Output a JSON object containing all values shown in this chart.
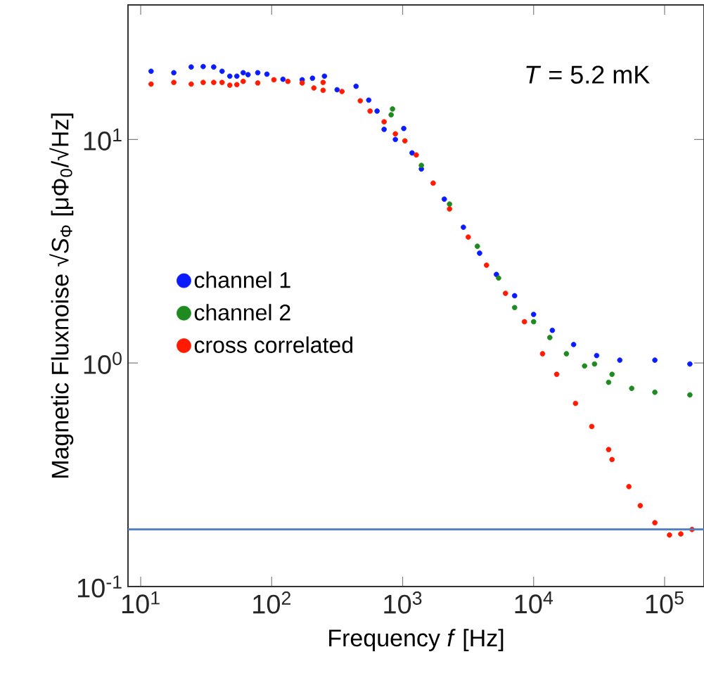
{
  "chart_data": {
    "type": "scatter",
    "xlabel": "Frequency *f* [Hz]",
    "ylabel": "Magnetic Fluxnoise √*S*$_{Φ}$  [μΦ$_{0}$/√Hz]",
    "annotations": [
      "*T* = 5.2 mK"
    ],
    "log": "xy",
    "marker": "circle",
    "legend": "center left",
    "xlim": [
      8,
      200000
    ],
    "ylim": [
      0.1,
      40
    ],
    "xticks": [
      {
        "value": 10,
        "label": "10$^{1}$"
      },
      {
        "value": 100,
        "label": "10$^{2}$"
      },
      {
        "value": 1000,
        "label": "10$^{3}$"
      },
      {
        "value": 10000,
        "label": "10$^{4}$"
      },
      {
        "value": 100000,
        "label": "10$^{5}$"
      }
    ],
    "yticks": [
      {
        "value": 0.1,
        "label": "10$^{-1}$"
      },
      {
        "value": 1,
        "label": "10$^{0}$"
      },
      {
        "value": 10,
        "label": "10$^{1}$"
      }
    ],
    "ref_lines": [
      {
        "axis": "y",
        "value": 0.18,
        "color": "#4f7fc0"
      }
    ],
    "series": [
      {
        "name": "channel 1",
        "color": "#0a1cff",
        "x": [
          12.0,
          17.9,
          24.3,
          30.0,
          36.1,
          41.8,
          47.9,
          54.2,
          60.6,
          66.0,
          78.3,
          92.0,
          122,
          171,
          205,
          253,
          316,
          441,
          551,
          638,
          722,
          880,
          1020,
          1180,
          1390,
          2080,
          2910,
          3870,
          5200,
          7160,
          10000,
          13900,
          20200,
          30300,
          45500,
          84300,
          156000
        ],
        "values": [
          20.2,
          19.9,
          21.1,
          21.2,
          21.1,
          20.2,
          19.2,
          19.2,
          19.9,
          19.5,
          19.9,
          19.6,
          18.6,
          18.5,
          18.8,
          19.2,
          16.7,
          17.3,
          15.0,
          13.4,
          11.1,
          10.0,
          11.2,
          8.71,
          7.38,
          5.41,
          4.05,
          3.1,
          2.49,
          2.0,
          1.65,
          1.4,
          1.21,
          1.08,
          1.03,
          1.03,
          0.99
        ]
      },
      {
        "name": "channel 2",
        "color": "#1f8a1f",
        "x": [
          817,
          837,
          1390,
          2280,
          3720,
          5400,
          7160,
          10000,
          13300,
          17800,
          24500,
          29200,
          37400,
          39700,
          56100,
          84300,
          156000
        ],
        "values": [
          12.9,
          13.7,
          7.66,
          5.14,
          3.33,
          2.4,
          1.77,
          1.53,
          1.3,
          1.1,
          0.97,
          0.99,
          0.82,
          0.89,
          0.77,
          0.74,
          0.72
        ]
      },
      {
        "name": "cross correlated",
        "color": "#ff1a00",
        "x": [
          12.0,
          17.9,
          24.3,
          30.0,
          36.1,
          41.8,
          47.9,
          54.2,
          60.6,
          78.3,
          104,
          133,
          171,
          210,
          247,
          247,
          344,
          475,
          564,
          722,
          880,
          1040,
          1270,
          1710,
          2280,
          3170,
          4370,
          6100,
          8510,
          11700,
          15000,
          20900,
          27800,
          37400,
          39700,
          53400,
          65200,
          84300,
          109000,
          133000,
          162000
        ],
        "values": [
          17.7,
          18.0,
          17.7,
          18.0,
          18.0,
          18.0,
          17.5,
          17.6,
          18.2,
          17.9,
          18.5,
          18.2,
          17.9,
          17.0,
          16.6,
          18.0,
          16.4,
          14.9,
          13.4,
          12.0,
          10.6,
          9.86,
          8.53,
          6.38,
          4.89,
          3.66,
          2.74,
          2.05,
          1.53,
          1.1,
          0.89,
          0.66,
          0.52,
          0.41,
          0.37,
          0.28,
          0.23,
          0.193,
          0.17,
          0.172,
          0.18
        ]
      }
    ]
  }
}
